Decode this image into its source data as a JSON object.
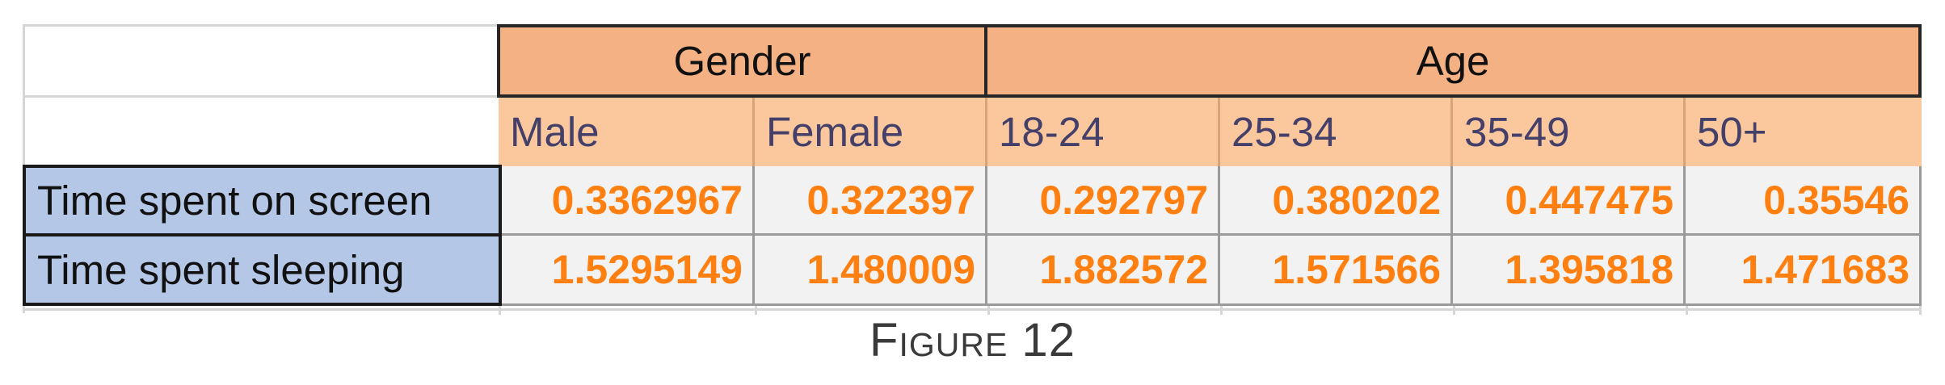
{
  "table": {
    "group_headers": [
      "Gender",
      "Age"
    ],
    "sub_headers": [
      "Male",
      "Female",
      "18-24",
      "25-34",
      "35-49",
      "50+"
    ],
    "rows": [
      {
        "label": "Time spent on screen",
        "values": [
          "0.3362967",
          "0.322397",
          "0.292797",
          "0.380202",
          "0.447475",
          "0.35546"
        ]
      },
      {
        "label": "Time spent sleeping",
        "values": [
          "1.5295149",
          "1.480009",
          "1.882572",
          "1.571566",
          "1.395818",
          "1.471683"
        ]
      }
    ]
  },
  "caption": "Figure 12",
  "colors": {
    "group_header_bg": "#f4b183",
    "sub_header_bg": "#fbc79d",
    "row_label_bg": "#b4c7e7",
    "value_text": "#ff8010",
    "value_bg": "#f2f2f2"
  }
}
